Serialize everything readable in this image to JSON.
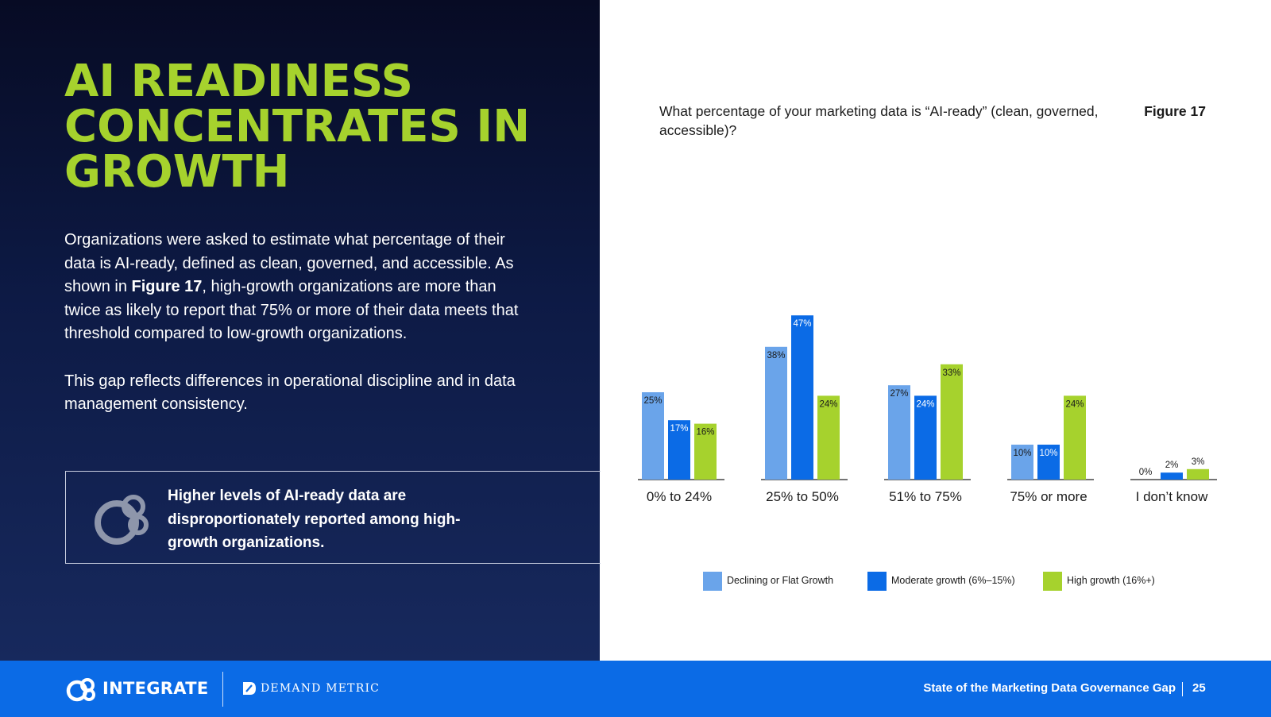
{
  "page": {
    "headline": [
      "AI READINESS",
      "CONCENTRATES IN",
      "GROWTH"
    ],
    "intro": {
      "before": "Organizations were asked to estimate what percentage of their data is AI-ready, defined as clean, governed, and accessible. As shown in ",
      "figure_ref": "Figure 17",
      "after": ", high-growth organizations are more than twice as likely to report that 75% or more of their data meets that threshold compared to low-growth organizations."
    },
    "paragraph2": "This gap reflects differences in operational discipline and in data management consistency.",
    "callout": "Higher levels of AI-ready data are disproportionately reported among high-growth organizations.",
    "question": "What percentage of your marketing data is “AI-ready” (clean, governed, accessible)?",
    "figure_label": "Figure 17"
  },
  "chart_data": {
    "type": "bar",
    "categories": [
      "0% to 24%",
      "25% to 50%",
      "51% to 75%",
      "75% or more",
      "I don’t know"
    ],
    "series": [
      {
        "name": "Declining or Flat Growth",
        "color": "#6aa4ea",
        "values": [
          25,
          38,
          27,
          10,
          0
        ],
        "labels": [
          "25%",
          "38%",
          "27%",
          "10%",
          "0%"
        ]
      },
      {
        "name": "Moderate growth (6%–15%)",
        "color": "#0b6be6",
        "values": [
          17,
          47,
          24,
          10,
          2
        ],
        "labels": [
          "17%",
          "47%",
          "24%",
          "10%",
          "2%"
        ]
      },
      {
        "name": "High growth (16%+)",
        "color": "#a6d22d",
        "values": [
          16,
          24,
          33,
          24,
          3
        ],
        "labels": [
          "16%",
          "24%",
          "33%",
          "24%",
          "3%"
        ]
      }
    ],
    "ylim": [
      0,
      50
    ],
    "legend_position": "bottom",
    "grid": false
  },
  "footer": {
    "brand": "INTEGRATE",
    "partner": "DEMAND METRIC",
    "title": "State of the Marketing Data Governance Gap",
    "page": "25"
  },
  "colors": {
    "accent_green": "#a6d22d",
    "brand_blue": "#0b6be6",
    "light_blue": "#6aa4ea",
    "panel_dark": "#0d1a45"
  }
}
